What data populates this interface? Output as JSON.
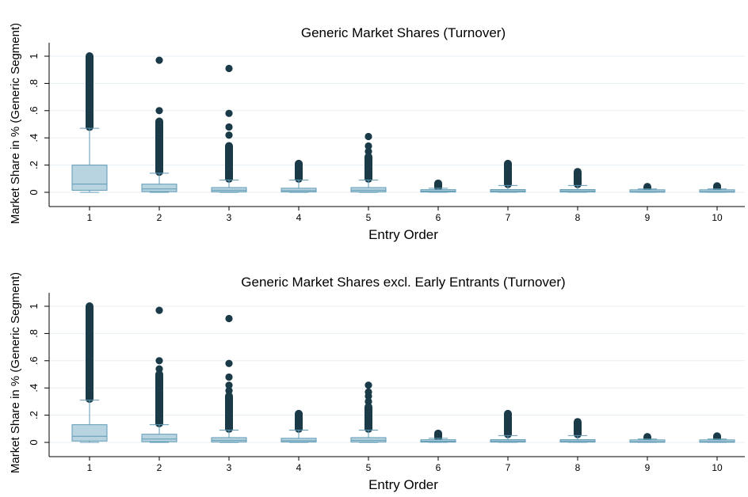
{
  "chart_data": [
    {
      "type": "box",
      "title": "Generic Market Shares (Turnover)",
      "xlabel": "Entry Order",
      "ylabel": "Market Share in % (Generic Segment)",
      "ylim": [
        0,
        1
      ],
      "yticks": [
        0,
        0.2,
        0.4,
        0.6,
        0.8,
        1
      ],
      "yticklabels": [
        "0",
        ".2",
        ".4",
        ".6",
        ".8",
        "1"
      ],
      "grid": "horizontal",
      "categories": [
        "1",
        "2",
        "3",
        "4",
        "5",
        "6",
        "7",
        "8",
        "9",
        "10"
      ],
      "boxes": [
        {
          "min": 0.0,
          "q1": 0.015,
          "median": 0.06,
          "q3": 0.2,
          "max": 0.47,
          "outlier_range": [
            0.48,
            1.0
          ],
          "outliers": []
        },
        {
          "min": 0.0,
          "q1": 0.005,
          "median": 0.025,
          "q3": 0.06,
          "max": 0.14,
          "outlier_range": [
            0.15,
            0.52
          ],
          "outliers": [
            0.6,
            0.97
          ]
        },
        {
          "min": 0.0,
          "q1": 0.003,
          "median": 0.015,
          "q3": 0.035,
          "max": 0.09,
          "outlier_range": [
            0.1,
            0.34
          ],
          "outliers": [
            0.42,
            0.48,
            0.58,
            0.91
          ]
        },
        {
          "min": 0.0,
          "q1": 0.003,
          "median": 0.012,
          "q3": 0.03,
          "max": 0.09,
          "outlier_range": [
            0.1,
            0.21
          ],
          "outliers": []
        },
        {
          "min": 0.0,
          "q1": 0.003,
          "median": 0.015,
          "q3": 0.035,
          "max": 0.09,
          "outlier_range": [
            0.1,
            0.26
          ],
          "outliers": [
            0.3,
            0.34,
            0.41
          ]
        },
        {
          "min": 0.0,
          "q1": 0.002,
          "median": 0.008,
          "q3": 0.015,
          "max": 0.03,
          "outlier_range": [
            0.035,
            0.065
          ],
          "outliers": []
        },
        {
          "min": 0.0,
          "q1": 0.002,
          "median": 0.01,
          "q3": 0.02,
          "max": 0.05,
          "outlier_range": [
            0.06,
            0.21
          ],
          "outliers": []
        },
        {
          "min": 0.0,
          "q1": 0.002,
          "median": 0.01,
          "q3": 0.02,
          "max": 0.05,
          "outlier_range": [
            0.06,
            0.15
          ],
          "outliers": []
        },
        {
          "min": 0.0,
          "q1": 0.001,
          "median": 0.005,
          "q3": 0.01,
          "max": 0.025,
          "outlier_range": [
            0.03,
            0.04
          ],
          "outliers": []
        },
        {
          "min": 0.0,
          "q1": 0.001,
          "median": 0.005,
          "q3": 0.012,
          "max": 0.025,
          "outlier_range": [
            0.03,
            0.045
          ],
          "outliers": []
        }
      ]
    },
    {
      "type": "box",
      "title": "Generic Market Shares excl. Early Entrants (Turnover)",
      "xlabel": "Entry Order",
      "ylabel": "Market Share in % (Generic Segment)",
      "ylim": [
        0,
        1
      ],
      "yticks": [
        0,
        0.2,
        0.4,
        0.6,
        0.8,
        1
      ],
      "yticklabels": [
        "0",
        ".2",
        ".4",
        ".6",
        ".8",
        "1"
      ],
      "grid": "horizontal",
      "categories": [
        "1",
        "2",
        "3",
        "4",
        "5",
        "6",
        "7",
        "8",
        "9",
        "10"
      ],
      "boxes": [
        {
          "min": 0.0,
          "q1": 0.01,
          "median": 0.045,
          "q3": 0.13,
          "max": 0.31,
          "outlier_range": [
            0.32,
            1.0
          ],
          "outliers": []
        },
        {
          "min": 0.0,
          "q1": 0.005,
          "median": 0.025,
          "q3": 0.06,
          "max": 0.13,
          "outlier_range": [
            0.14,
            0.5
          ],
          "outliers": [
            0.54,
            0.6,
            0.97
          ]
        },
        {
          "min": 0.0,
          "q1": 0.003,
          "median": 0.015,
          "q3": 0.035,
          "max": 0.09,
          "outlier_range": [
            0.1,
            0.34
          ],
          "outliers": [
            0.38,
            0.42,
            0.48,
            0.58,
            0.91
          ]
        },
        {
          "min": 0.0,
          "q1": 0.003,
          "median": 0.012,
          "q3": 0.03,
          "max": 0.09,
          "outlier_range": [
            0.1,
            0.21
          ],
          "outliers": []
        },
        {
          "min": 0.0,
          "q1": 0.003,
          "median": 0.015,
          "q3": 0.035,
          "max": 0.09,
          "outlier_range": [
            0.1,
            0.26
          ],
          "outliers": [
            0.3,
            0.34,
            0.37,
            0.42
          ]
        },
        {
          "min": 0.0,
          "q1": 0.002,
          "median": 0.008,
          "q3": 0.015,
          "max": 0.03,
          "outlier_range": [
            0.035,
            0.065
          ],
          "outliers": []
        },
        {
          "min": 0.0,
          "q1": 0.002,
          "median": 0.01,
          "q3": 0.02,
          "max": 0.05,
          "outlier_range": [
            0.06,
            0.21
          ],
          "outliers": []
        },
        {
          "min": 0.0,
          "q1": 0.002,
          "median": 0.01,
          "q3": 0.02,
          "max": 0.05,
          "outlier_range": [
            0.06,
            0.15
          ],
          "outliers": []
        },
        {
          "min": 0.0,
          "q1": 0.001,
          "median": 0.005,
          "q3": 0.01,
          "max": 0.025,
          "outlier_range": [
            0.03,
            0.04
          ],
          "outliers": []
        },
        {
          "min": 0.0,
          "q1": 0.001,
          "median": 0.005,
          "q3": 0.012,
          "max": 0.025,
          "outlier_range": [
            0.03,
            0.045
          ],
          "outliers": []
        }
      ]
    }
  ],
  "colors": {
    "box_fill": "#b8d4e0",
    "box_stroke": "#5f9ab4",
    "whisker": "#5f9ab4",
    "outlier": "#1a3a48",
    "grid": "#e6eef2",
    "axis": "#000000",
    "text": "#000000"
  }
}
